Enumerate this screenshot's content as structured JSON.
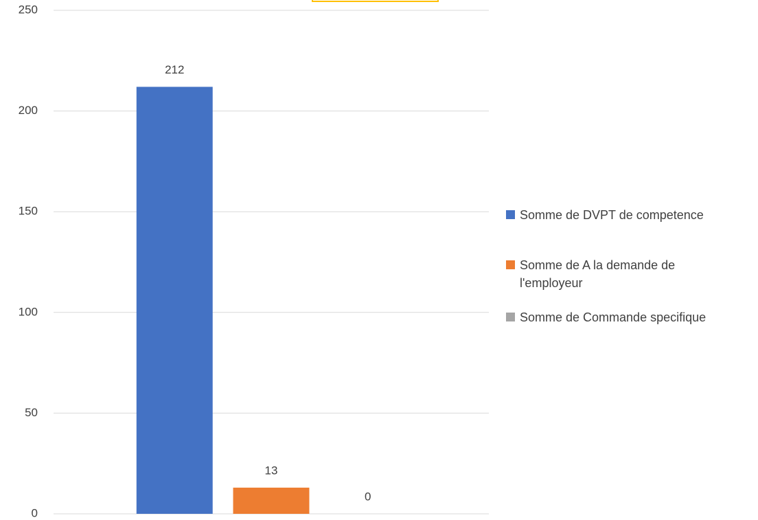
{
  "chart_data": {
    "type": "bar",
    "categories": [
      null
    ],
    "series": [
      {
        "name": "Somme de DVPT de competence",
        "color": "#4472c4",
        "values": [
          212
        ]
      },
      {
        "name": "Somme de A la demande de l'employeur",
        "color": "#ed7d31",
        "values": [
          13
        ]
      },
      {
        "name": "Somme de Commande specifique",
        "color": "#a5a5a5",
        "values": [
          0
        ]
      }
    ],
    "ylim": [
      0,
      250
    ],
    "yticks": [
      0,
      50,
      100,
      150,
      200,
      250
    ],
    "grid": true,
    "legend": "right",
    "data_labels": true
  }
}
